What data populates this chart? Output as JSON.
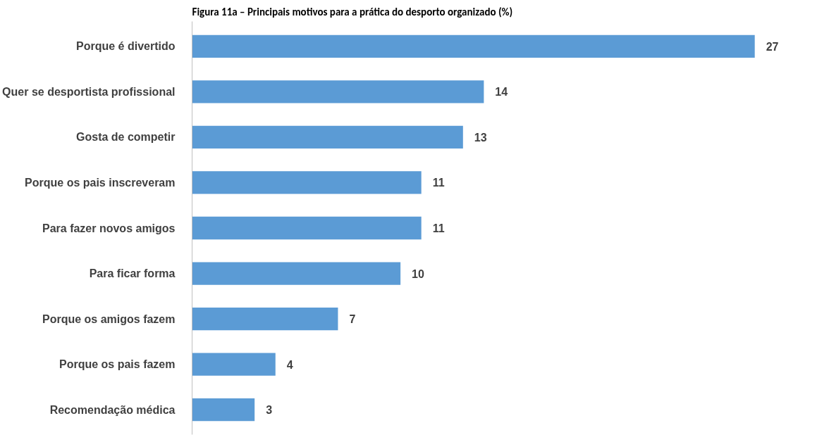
{
  "chart_data": {
    "type": "bar",
    "orientation": "horizontal",
    "title": "Figura 11a – Principais motivos para a prática do desporto organizado (%)",
    "categories": [
      "Porque é divertido",
      "Quer se desportista profissional",
      "Gosta de competir",
      "Porque os pais inscreveram",
      "Para fazer novos amigos",
      "Para ficar forma",
      "Porque os amigos fazem",
      "Porque os pais fazem",
      "Recomendação médica"
    ],
    "values": [
      27,
      14,
      13,
      11,
      11,
      10,
      7,
      4,
      3
    ],
    "color": "#5b9bd5",
    "data_labels": true,
    "grid": false
  }
}
